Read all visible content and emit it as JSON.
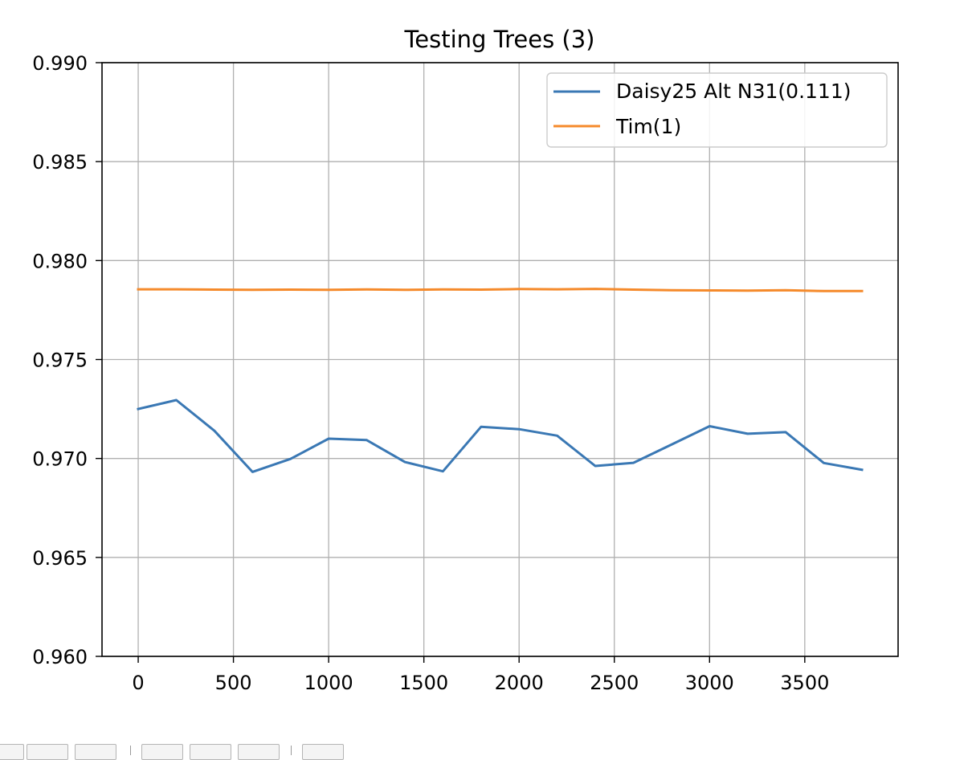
{
  "chart_data": {
    "type": "line",
    "title": "Testing Trees (3)",
    "xlabel": "",
    "ylabel": "",
    "xlim": [
      -190,
      3990
    ],
    "ylim": [
      0.96,
      0.99
    ],
    "x_ticks": [
      0,
      500,
      1000,
      1500,
      2000,
      2500,
      3000,
      3500
    ],
    "x_tick_labels": [
      "0",
      "500",
      "1000",
      "1500",
      "2000",
      "2500",
      "3000",
      "3500"
    ],
    "y_ticks": [
      0.96,
      0.965,
      0.97,
      0.975,
      0.98,
      0.985,
      0.99
    ],
    "y_tick_labels": [
      "0.960",
      "0.965",
      "0.970",
      "0.975",
      "0.980",
      "0.985",
      "0.990"
    ],
    "grid": true,
    "legend_position": "upper right",
    "x": [
      0,
      200,
      400,
      600,
      800,
      1000,
      1200,
      1400,
      1600,
      1800,
      2000,
      2200,
      2400,
      2600,
      2800,
      3000,
      3200,
      3400,
      3600,
      3800
    ],
    "series": [
      {
        "name": "Daisy25 Alt N31(0.111)",
        "color": "#3a78b4",
        "values": [
          0.9725,
          0.97295,
          0.9714,
          0.96932,
          0.96998,
          0.971,
          0.97093,
          0.96982,
          0.96935,
          0.9716,
          0.97148,
          0.97115,
          0.96962,
          0.96978,
          0.9707,
          0.97163,
          0.97125,
          0.97133,
          0.96977,
          0.96943
        ]
      },
      {
        "name": "Tim(1)",
        "color": "#f58a2b",
        "values": [
          0.97855,
          0.97855,
          0.97853,
          0.97852,
          0.97853,
          0.97852,
          0.97854,
          0.97852,
          0.97854,
          0.97853,
          0.97856,
          0.97855,
          0.97857,
          0.97853,
          0.9785,
          0.97849,
          0.97848,
          0.9785,
          0.97846,
          0.97846
        ]
      }
    ]
  }
}
